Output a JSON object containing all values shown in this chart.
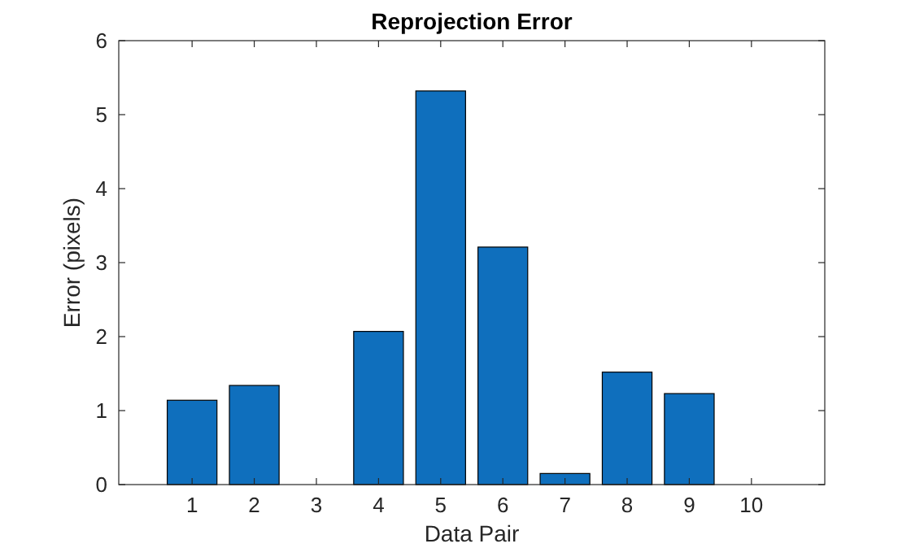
{
  "chart_data": {
    "type": "bar",
    "title": "Reprojection Error",
    "xlabel": "Data Pair",
    "ylabel": "Error (pixels)",
    "categories": [
      "1",
      "2",
      "3",
      "4",
      "5",
      "6",
      "7",
      "8",
      "9",
      "10"
    ],
    "values": [
      1.14,
      1.34,
      0,
      2.07,
      5.32,
      3.21,
      0.15,
      1.52,
      1.23,
      0
    ],
    "color": "#0f6fbd",
    "ylim": [
      0,
      6
    ],
    "yticks": [
      0,
      1,
      2,
      3,
      4,
      5,
      6
    ],
    "grid": false
  }
}
